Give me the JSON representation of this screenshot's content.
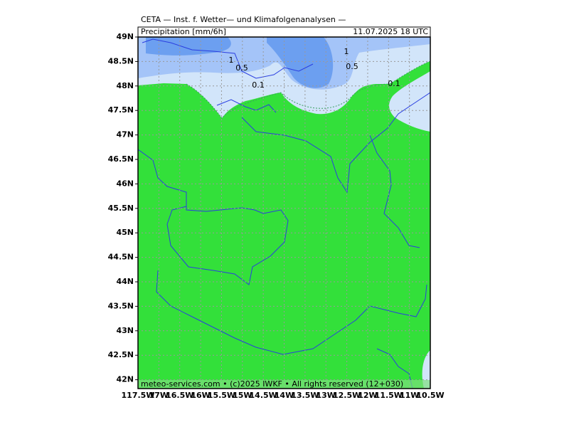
{
  "header": {
    "title": "CETA — Inst. f. Wetter— und Klimafolgenanalysen —",
    "variable": "Precipitation [mm/6h]",
    "valid_time": "11.07.2025  18 UTC"
  },
  "map": {
    "lat_labels": [
      "49N",
      "48.5N",
      "48N",
      "47.5N",
      "47N",
      "46.5N",
      "46N",
      "45.5N",
      "45N",
      "44.5N",
      "44N",
      "43.5N",
      "43N",
      "42.5N",
      "42N"
    ],
    "lon_labels": [
      "117.5W",
      "17W",
      "16.5W",
      "16W",
      "15.5W",
      "15W",
      "14.5W",
      "14W",
      "13.5W",
      "13W",
      "12.5W",
      "12W",
      "11.5W",
      "11W",
      "10.5W"
    ],
    "contour_labels": [
      "1",
      "0.5",
      "0.1",
      "1",
      "0.5",
      "0.1"
    ]
  },
  "footer": "meteo-services.com • (c)2025 IWKF • All rights reserved (12+030)"
}
